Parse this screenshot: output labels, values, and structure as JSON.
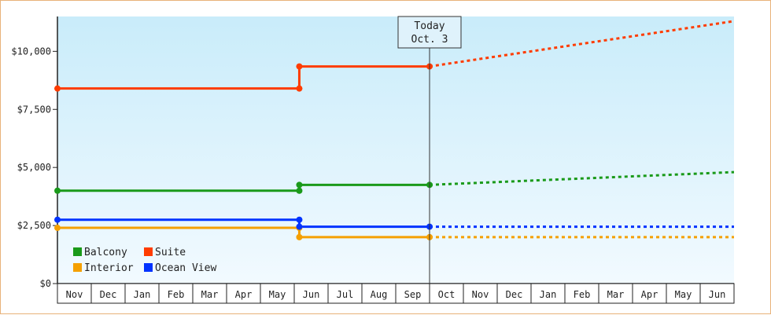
{
  "chart_data": {
    "type": "line",
    "categories": [
      "Nov",
      "Dec",
      "Jan",
      "Feb",
      "Mar",
      "Apr",
      "May",
      "Jun",
      "Jul",
      "Aug",
      "Sep",
      "Oct",
      "Nov",
      "Dec",
      "Jan",
      "Feb",
      "Mar",
      "Apr",
      "May",
      "Jun"
    ],
    "y_ticks": [
      "$0",
      "$2,500",
      "$5,000",
      "$7,500",
      "$10,000"
    ],
    "ylim": [
      0,
      11500
    ],
    "today_marker": {
      "line1": "Today",
      "line2": "Oct. 3",
      "x": 11
    },
    "grid": false,
    "legend_position": "bottom-left",
    "series": [
      {
        "name": "Balcony",
        "color": "#1a9a1a",
        "actual": [
          [
            0,
            4000
          ],
          [
            7.15,
            4000
          ],
          [
            7.15,
            4250
          ],
          [
            11,
            4250
          ]
        ],
        "forecast": [
          [
            11,
            4250
          ],
          [
            20,
            4800
          ]
        ]
      },
      {
        "name": "Suite",
        "color": "#ff3c00",
        "actual": [
          [
            0,
            8400
          ],
          [
            7.15,
            8400
          ],
          [
            7.15,
            9350
          ],
          [
            11,
            9350
          ]
        ],
        "forecast": [
          [
            11,
            9350
          ],
          [
            20,
            11300
          ]
        ]
      },
      {
        "name": "Interior",
        "color": "#f5a000",
        "actual": [
          [
            0,
            2400
          ],
          [
            7.15,
            2400
          ],
          [
            7.15,
            2000
          ],
          [
            11,
            2000
          ]
        ],
        "forecast": [
          [
            11,
            2000
          ],
          [
            20,
            2000
          ]
        ]
      },
      {
        "name": "Ocean View",
        "color": "#0033ff",
        "actual": [
          [
            0,
            2750
          ],
          [
            7.15,
            2750
          ],
          [
            7.15,
            2450
          ],
          [
            11,
            2450
          ]
        ],
        "forecast": [
          [
            11,
            2450
          ],
          [
            20,
            2450
          ]
        ]
      }
    ]
  }
}
